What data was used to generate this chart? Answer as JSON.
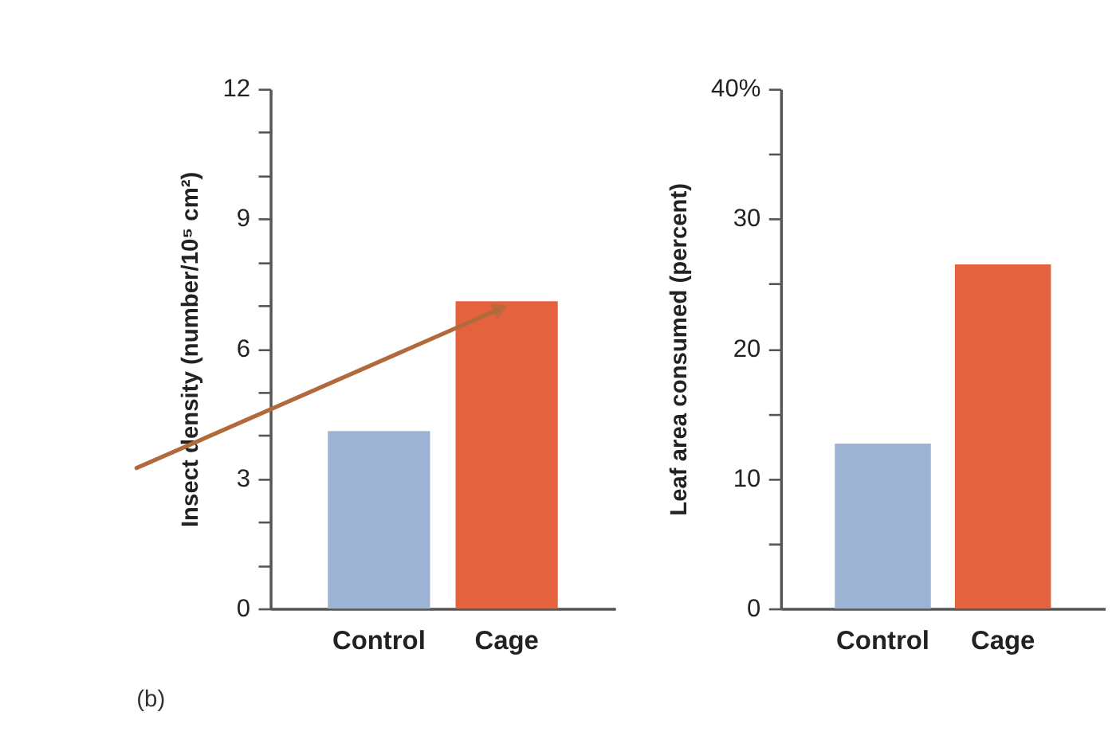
{
  "chart_data": [
    {
      "type": "bar",
      "categories": [
        "Control",
        "Cage"
      ],
      "values": [
        4.1,
        7.1
      ],
      "colors": [
        "#9db3d4",
        "#e5623f"
      ],
      "ylabel": "Insect density (number/10⁵ cm²)",
      "ylim": [
        0,
        12
      ],
      "yticks": [
        0,
        {
          "value": 1,
          "label": null
        },
        {
          "value": 2,
          "label": null
        },
        3,
        {
          "value": 4,
          "label": null
        },
        {
          "value": 5,
          "label": null
        },
        6,
        {
          "value": 7,
          "label": null
        },
        {
          "value": 8,
          "label": null
        },
        9,
        {
          "value": 10,
          "label": null
        },
        {
          "value": 11,
          "label": null
        },
        12
      ],
      "annotations": [
        "(b)"
      ]
    },
    {
      "type": "bar",
      "categories": [
        "Control",
        "Cage"
      ],
      "values": [
        12.7,
        26.5
      ],
      "colors": [
        "#9db3d4",
        "#e5623f"
      ],
      "ylabel": "Leaf area consumed (percent)",
      "ylim": [
        0,
        40
      ],
      "yticks": [
        0,
        {
          "value": 5,
          "label": null
        },
        10,
        {
          "value": 15,
          "label": null
        },
        20,
        {
          "value": 25,
          "label": null
        },
        30,
        {
          "value": 35,
          "label": null
        },
        {
          "value": 40,
          "label": "40%"
        }
      ]
    }
  ]
}
